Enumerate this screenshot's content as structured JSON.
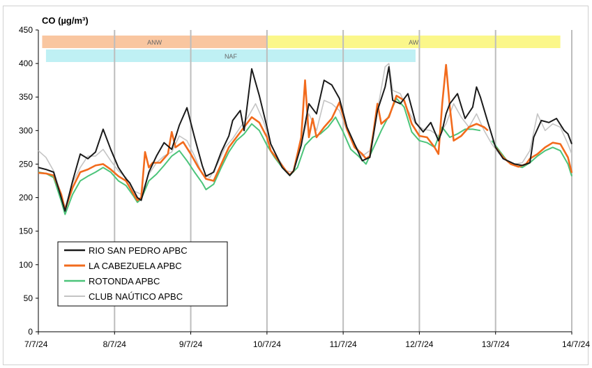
{
  "chart_data": {
    "type": "line",
    "title": "CO (µg/m³)",
    "ylim": [
      0,
      450
    ],
    "yticks": [
      0,
      50,
      100,
      150,
      200,
      250,
      300,
      350,
      400,
      450
    ],
    "xlim": [
      0,
      7
    ],
    "xtick_values": [
      0,
      1,
      2,
      3,
      4,
      5,
      6,
      7
    ],
    "xtick_labels": [
      "7/7/24",
      "8/7/24",
      "9/7/24",
      "10/7/24",
      "11/7/24",
      "12/7/24",
      "13/7/24",
      "14/7/24"
    ],
    "x_unit": "days since 7/7/24",
    "grid": "vertical",
    "legend_position": "bottom-left",
    "bands": [
      {
        "label": "ANW",
        "x0": 0.05,
        "x1": 3.0,
        "color": "#f9c6a0"
      },
      {
        "label": "AW",
        "x0": 3.0,
        "x1": 6.85,
        "color": "#fbf78a"
      },
      {
        "label": "NAF",
        "x0": 0.1,
        "x1": 4.95,
        "color": "#bff0f4"
      }
    ],
    "series": [
      {
        "name": "RIO SAN PEDRO APBC",
        "color": "#1a1a1a",
        "width": 2,
        "points": [
          [
            0,
            245
          ],
          [
            0.1,
            242
          ],
          [
            0.2,
            238
          ],
          [
            0.3,
            200
          ],
          [
            0.35,
            180
          ],
          [
            0.45,
            225
          ],
          [
            0.55,
            265
          ],
          [
            0.65,
            258
          ],
          [
            0.75,
            268
          ],
          [
            0.85,
            302
          ],
          [
            0.95,
            272
          ],
          [
            1.05,
            245
          ],
          [
            1.15,
            228
          ],
          [
            1.2,
            222
          ],
          [
            1.3,
            200
          ],
          [
            1.35,
            196
          ],
          [
            1.45,
            238
          ],
          [
            1.55,
            262
          ],
          [
            1.65,
            282
          ],
          [
            1.75,
            272
          ],
          [
            1.85,
            308
          ],
          [
            1.95,
            334
          ],
          [
            2.05,
            290
          ],
          [
            2.15,
            248
          ],
          [
            2.2,
            232
          ],
          [
            2.3,
            238
          ],
          [
            2.4,
            268
          ],
          [
            2.5,
            292
          ],
          [
            2.55,
            315
          ],
          [
            2.65,
            330
          ],
          [
            2.7,
            300
          ],
          [
            2.8,
            392
          ],
          [
            2.9,
            352
          ],
          [
            3.0,
            305
          ],
          [
            3.05,
            280
          ],
          [
            3.2,
            245
          ],
          [
            3.3,
            233
          ],
          [
            3.35,
            240
          ],
          [
            3.45,
            278
          ],
          [
            3.55,
            340
          ],
          [
            3.65,
            325
          ],
          [
            3.75,
            375
          ],
          [
            3.85,
            368
          ],
          [
            3.95,
            348
          ],
          [
            4.05,
            305
          ],
          [
            4.15,
            280
          ],
          [
            4.25,
            255
          ],
          [
            4.35,
            260
          ],
          [
            4.45,
            330
          ],
          [
            4.55,
            365
          ],
          [
            4.6,
            395
          ],
          [
            4.65,
            345
          ],
          [
            4.75,
            340
          ],
          [
            4.85,
            355
          ],
          [
            4.95,
            312
          ],
          [
            5.05,
            298
          ],
          [
            5.15,
            312
          ],
          [
            5.25,
            285
          ],
          [
            5.3,
            300
          ],
          [
            5.35,
            325
          ],
          [
            5.4,
            340
          ],
          [
            5.5,
            355
          ],
          [
            5.6,
            318
          ],
          [
            5.7,
            335
          ],
          [
            5.75,
            365
          ],
          [
            5.8,
            350
          ],
          [
            5.9,
            312
          ],
          [
            6.0,
            275
          ],
          [
            6.1,
            258
          ],
          [
            6.25,
            250
          ],
          [
            6.35,
            248
          ],
          [
            6.45,
            252
          ],
          [
            6.5,
            290
          ],
          [
            6.6,
            315
          ],
          [
            6.7,
            312
          ],
          [
            6.8,
            318
          ],
          [
            6.9,
            300
          ],
          [
            6.95,
            295
          ],
          [
            7.0,
            280
          ]
        ]
      },
      {
        "name": "LA CABEZUELA  APBC",
        "color": "#f26b1d",
        "width": 2.6,
        "points": [
          [
            0,
            237
          ],
          [
            0.1,
            236
          ],
          [
            0.2,
            233
          ],
          [
            0.3,
            205
          ],
          [
            0.35,
            182
          ],
          [
            0.45,
            215
          ],
          [
            0.55,
            238
          ],
          [
            0.65,
            242
          ],
          [
            0.75,
            248
          ],
          [
            0.85,
            250
          ],
          [
            0.95,
            242
          ],
          [
            1.05,
            232
          ],
          [
            1.15,
            225
          ],
          [
            1.25,
            205
          ],
          [
            1.3,
            196
          ],
          [
            1.35,
            200
          ],
          [
            1.4,
            268
          ],
          [
            1.45,
            245
          ],
          [
            1.5,
            252
          ],
          [
            1.6,
            252
          ],
          [
            1.7,
            265
          ],
          [
            1.75,
            298
          ],
          [
            1.8,
            275
          ],
          [
            1.9,
            283
          ],
          [
            2.0,
            265
          ],
          [
            2.1,
            245
          ],
          [
            2.2,
            228
          ],
          [
            2.3,
            225
          ],
          [
            2.4,
            250
          ],
          [
            2.5,
            275
          ],
          [
            2.6,
            290
          ],
          [
            2.7,
            305
          ],
          [
            2.8,
            320
          ],
          [
            2.9,
            312
          ],
          [
            3.0,
            290
          ],
          [
            3.05,
            270
          ],
          [
            3.15,
            255
          ],
          [
            3.25,
            240
          ],
          [
            3.3,
            234
          ],
          [
            3.35,
            240
          ],
          [
            3.45,
            290
          ],
          [
            3.5,
            375
          ],
          [
            3.55,
            290
          ],
          [
            3.6,
            318
          ],
          [
            3.65,
            290
          ],
          [
            3.75,
            305
          ],
          [
            3.85,
            318
          ],
          [
            3.95,
            342
          ],
          [
            4.05,
            302
          ],
          [
            4.15,
            275
          ],
          [
            4.25,
            265
          ],
          [
            4.3,
            258
          ],
          [
            4.35,
            262
          ],
          [
            4.4,
            300
          ],
          [
            4.45,
            340
          ],
          [
            4.5,
            310
          ],
          [
            4.6,
            320
          ],
          [
            4.7,
            352
          ],
          [
            4.8,
            345
          ],
          [
            4.9,
            310
          ],
          [
            5.0,
            292
          ],
          [
            5.1,
            290
          ],
          [
            5.2,
            275
          ],
          [
            5.25,
            265
          ],
          [
            5.3,
            340
          ],
          [
            5.35,
            398
          ],
          [
            5.4,
            335
          ],
          [
            5.45,
            285
          ],
          [
            5.55,
            292
          ],
          [
            5.65,
            305
          ],
          [
            5.75,
            310
          ],
          [
            5.85,
            305
          ],
          [
            5.9,
            300
          ],
          null,
          [
            6.0,
            275
          ],
          [
            6.1,
            260
          ],
          [
            6.2,
            250
          ],
          [
            6.3,
            246
          ],
          [
            6.4,
            250
          ],
          [
            6.45,
            258
          ],
          [
            6.55,
            265
          ],
          [
            6.65,
            275
          ],
          [
            6.75,
            282
          ],
          [
            6.85,
            280
          ],
          [
            6.95,
            260
          ],
          [
            7.0,
            237
          ]
        ]
      },
      {
        "name": "ROTONDA  APBC",
        "color": "#4cc47a",
        "width": 2,
        "points": [
          [
            0,
            238
          ],
          [
            0.1,
            236
          ],
          [
            0.2,
            230
          ],
          [
            0.3,
            195
          ],
          [
            0.35,
            175
          ],
          [
            0.45,
            205
          ],
          [
            0.55,
            225
          ],
          [
            0.65,
            232
          ],
          [
            0.75,
            238
          ],
          [
            0.85,
            245
          ],
          [
            0.95,
            238
          ],
          [
            1.05,
            225
          ],
          [
            1.15,
            218
          ],
          [
            1.25,
            202
          ],
          [
            1.3,
            193
          ],
          [
            1.35,
            198
          ],
          [
            1.45,
            225
          ],
          [
            1.55,
            235
          ],
          [
            1.65,
            248
          ],
          [
            1.75,
            262
          ],
          [
            1.85,
            270
          ],
          [
            1.95,
            255
          ],
          [
            2.05,
            238
          ],
          [
            2.15,
            222
          ],
          [
            2.2,
            212
          ],
          [
            2.3,
            220
          ],
          [
            2.4,
            245
          ],
          [
            2.5,
            268
          ],
          [
            2.6,
            285
          ],
          [
            2.7,
            295
          ],
          [
            2.8,
            310
          ],
          [
            2.9,
            300
          ],
          [
            3.0,
            278
          ],
          [
            3.1,
            260
          ],
          [
            3.2,
            245
          ],
          [
            3.3,
            233
          ],
          [
            3.4,
            245
          ],
          [
            3.5,
            278
          ],
          [
            3.6,
            290
          ],
          [
            3.7,
            295
          ],
          [
            3.8,
            305
          ],
          [
            3.9,
            320
          ],
          [
            4.0,
            298
          ],
          [
            4.1,
            272
          ],
          [
            4.2,
            262
          ],
          [
            4.3,
            250
          ],
          [
            4.4,
            275
          ],
          [
            4.5,
            300
          ],
          [
            4.6,
            322
          ],
          [
            4.7,
            348
          ],
          [
            4.8,
            335
          ],
          [
            4.9,
            298
          ],
          [
            5.0,
            285
          ],
          [
            5.1,
            282
          ],
          [
            5.2,
            275
          ],
          [
            5.3,
            305
          ],
          [
            5.4,
            290
          ],
          [
            5.5,
            295
          ],
          [
            5.6,
            302
          ],
          [
            5.7,
            302
          ],
          [
            5.8,
            300
          ],
          null,
          [
            5.95,
            285
          ],
          [
            6.05,
            270
          ],
          [
            6.15,
            255
          ],
          [
            6.25,
            248
          ],
          [
            6.35,
            245
          ],
          [
            6.45,
            252
          ],
          [
            6.55,
            262
          ],
          [
            6.65,
            270
          ],
          [
            6.75,
            275
          ],
          [
            6.85,
            270
          ],
          [
            6.95,
            250
          ],
          [
            7.0,
            232
          ]
        ]
      },
      {
        "name": "CLUB NAÚTICO  APBC",
        "color": "#c4c4c4",
        "width": 1.6,
        "points": [
          [
            0,
            270
          ],
          [
            0.1,
            260
          ],
          [
            0.2,
            240
          ],
          [
            0.3,
            205
          ],
          [
            0.35,
            185
          ],
          [
            0.45,
            222
          ],
          [
            0.55,
            245
          ],
          [
            0.65,
            262
          ],
          [
            0.75,
            262
          ],
          [
            0.85,
            272
          ],
          [
            0.95,
            255
          ],
          [
            1.05,
            240
          ],
          [
            1.15,
            230
          ],
          [
            1.25,
            210
          ],
          [
            1.35,
            205
          ],
          [
            1.45,
            235
          ],
          [
            1.55,
            252
          ],
          [
            1.65,
            262
          ],
          [
            1.75,
            268
          ],
          [
            1.85,
            292
          ],
          [
            1.95,
            285
          ],
          [
            2.05,
            262
          ],
          [
            2.15,
            235
          ],
          [
            2.25,
            230
          ],
          [
            2.35,
            250
          ],
          [
            2.45,
            275
          ],
          [
            2.55,
            288
          ],
          [
            2.65,
            305
          ],
          [
            2.75,
            320
          ],
          [
            2.85,
            340
          ],
          [
            2.95,
            315
          ],
          [
            3.05,
            280
          ],
          [
            3.15,
            258
          ],
          [
            3.25,
            240
          ],
          [
            3.35,
            238
          ],
          [
            3.45,
            280
          ],
          [
            3.55,
            325
          ],
          [
            3.65,
            300
          ],
          [
            3.75,
            345
          ],
          [
            3.85,
            340
          ],
          [
            3.95,
            330
          ],
          [
            4.05,
            300
          ],
          [
            4.15,
            280
          ],
          [
            4.25,
            262
          ],
          [
            4.35,
            270
          ],
          [
            4.45,
            330
          ],
          [
            4.55,
            395
          ],
          [
            4.6,
            400
          ],
          [
            4.65,
            360
          ],
          [
            4.75,
            355
          ],
          [
            4.85,
            330
          ],
          [
            4.95,
            310
          ],
          [
            5.05,
            302
          ],
          [
            5.15,
            300
          ],
          [
            5.25,
            292
          ],
          [
            5.35,
            310
          ],
          [
            5.45,
            340
          ],
          [
            5.55,
            320
          ],
          [
            5.65,
            305
          ],
          [
            5.75,
            325
          ],
          [
            5.85,
            300
          ],
          [
            5.95,
            280
          ],
          [
            6.05,
            265
          ],
          [
            6.15,
            255
          ],
          [
            6.25,
            250
          ],
          [
            6.35,
            252
          ],
          [
            6.45,
            270
          ],
          [
            6.55,
            325
          ],
          [
            6.65,
            300
          ],
          [
            6.75,
            310
          ],
          [
            6.85,
            305
          ],
          [
            6.95,
            280
          ],
          [
            7.0,
            265
          ]
        ]
      }
    ]
  }
}
